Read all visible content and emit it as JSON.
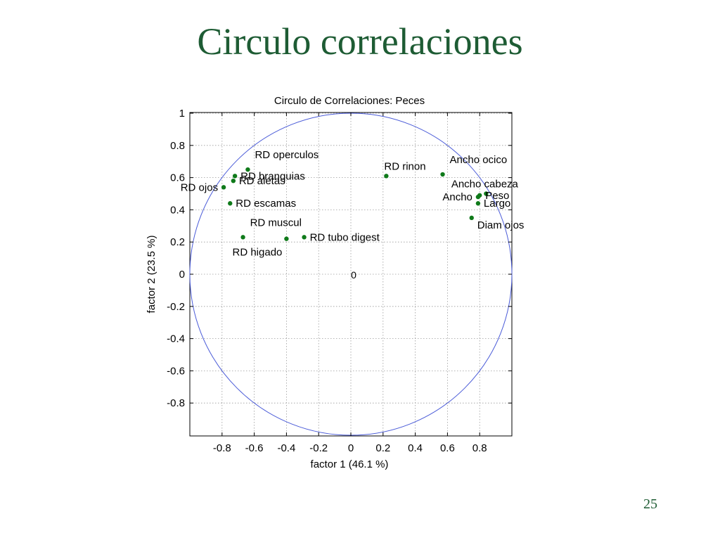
{
  "slide": {
    "title": "Circulo correlaciones",
    "page_number": "25"
  },
  "colors": {
    "title": "#1e5c34",
    "points": "#0f7a1a",
    "circle": "#4a5bd8",
    "grid": "#9a9a9a"
  },
  "chart_data": {
    "type": "scatter",
    "title": "Circulo de Correlaciones: Peces",
    "xlabel": "factor  1  (46.1 %)",
    "ylabel": "factor  2  (23.5 %)",
    "xlim": [
      -1,
      1
    ],
    "ylim": [
      -1,
      1
    ],
    "xticks": [
      -0.8,
      -0.6,
      -0.4,
      -0.2,
      0,
      0.2,
      0.4,
      0.6,
      0.8
    ],
    "xtick_labels": [
      "-0.8",
      "-0.6",
      "-0.4",
      "-0.2",
      "0",
      "0.2",
      "0.4",
      "0.6",
      "0.8"
    ],
    "yticks": [
      1,
      0.8,
      0.6,
      0.4,
      0.2,
      0,
      -0.2,
      -0.4,
      -0.6,
      -0.8
    ],
    "ytick_labels": [
      "1",
      "0.8",
      "0.6",
      "0.4",
      "0.2",
      "0",
      "-0.2",
      "-0.4",
      "-0.6",
      "-0.8"
    ],
    "grid": true,
    "unit_circle": true,
    "origin_label": "0",
    "points": [
      {
        "label": "RD operculos",
        "x": -0.64,
        "y": 0.65,
        "label_pos": "above-right"
      },
      {
        "label": "RD branquias",
        "x": -0.72,
        "y": 0.61,
        "label_pos": "right"
      },
      {
        "label": "RD aletas",
        "x": -0.73,
        "y": 0.58,
        "label_pos": "right"
      },
      {
        "label": "RD ojos",
        "x": -0.79,
        "y": 0.54,
        "label_pos": "left"
      },
      {
        "label": "RD escamas",
        "x": -0.75,
        "y": 0.44,
        "label_pos": "right"
      },
      {
        "label": "RD muscul",
        "x": -0.67,
        "y": 0.23,
        "label_pos": "above-right"
      },
      {
        "label": "RD higado",
        "x": -0.4,
        "y": 0.22,
        "label_pos": "below-left"
      },
      {
        "label": "RD tubo digest",
        "x": -0.29,
        "y": 0.23,
        "label_pos": "right"
      },
      {
        "label": "RD rinon",
        "x": 0.22,
        "y": 0.61,
        "label_pos": "above"
      },
      {
        "label": "Ancho ocico",
        "x": 0.57,
        "y": 0.62,
        "label_pos": "above-right"
      },
      {
        "label": "Ancho cabeza",
        "x": 0.84,
        "y": 0.5,
        "label_pos": "above"
      },
      {
        "label": "Peso",
        "x": 0.8,
        "y": 0.49,
        "label_pos": "right"
      },
      {
        "label": "Ancho",
        "x": 0.79,
        "y": 0.48,
        "label_pos": "left"
      },
      {
        "label": "Largo",
        "x": 0.79,
        "y": 0.44,
        "label_pos": "right"
      },
      {
        "label": "Diam ojos",
        "x": 0.75,
        "y": 0.35,
        "label_pos": "below-right"
      }
    ]
  }
}
